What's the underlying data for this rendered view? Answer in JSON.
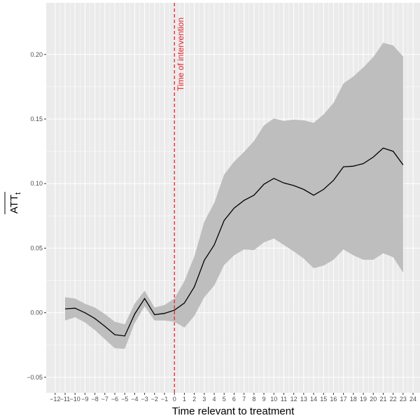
{
  "chart_data": {
    "type": "line",
    "xlabel": "Time relevant to treatment",
    "ylabel": "ATT",
    "ylabel_sub": "t",
    "xlim": [
      -12.9,
      24.7
    ],
    "ylim": [
      -0.062,
      0.24
    ],
    "x_ticks": [
      -12,
      -11,
      -10,
      -9,
      -8,
      -7,
      -6,
      -5,
      -4,
      -3,
      -2,
      -1,
      0,
      1,
      2,
      3,
      4,
      5,
      6,
      7,
      8,
      9,
      10,
      11,
      12,
      13,
      14,
      15,
      16,
      17,
      18,
      19,
      20,
      21,
      22,
      23,
      24
    ],
    "x_tick_labels": [
      "−12",
      "−11",
      "−10",
      "−9",
      "−8",
      "−7",
      "−6",
      "−5",
      "−4",
      "−3",
      "−2",
      "−1",
      "0",
      "1",
      "2",
      "3",
      "4",
      "5",
      "6",
      "7",
      "8",
      "9",
      "10",
      "11",
      "12",
      "13",
      "14",
      "15",
      "16",
      "17",
      "18",
      "19",
      "20",
      "21",
      "22",
      "23",
      "24"
    ],
    "y_ticks": [
      -0.05,
      0.0,
      0.05,
      0.1,
      0.15,
      0.2
    ],
    "y_tick_labels": [
      "−0.05",
      "0.00",
      "0.05",
      "0.10",
      "0.15",
      "0.20"
    ],
    "grid": true,
    "colors": {
      "panel": "#ebebeb",
      "grid": "#ffffff",
      "band": "#bebebe",
      "line": "#000000",
      "vline": "#e8242a"
    },
    "series": [
      {
        "x": [
          -11,
          -10,
          -9,
          -8,
          -7,
          -6,
          -5,
          -4,
          -3,
          -2,
          -1,
          0,
          1,
          2,
          3,
          4,
          5,
          6,
          7,
          8,
          9,
          10,
          11,
          12,
          13,
          14,
          15,
          16,
          17,
          18,
          19,
          20,
          21,
          22,
          23
        ],
        "values": [
          0.003,
          0.0035,
          0.0,
          -0.0045,
          -0.0105,
          -0.017,
          -0.018,
          -0.001,
          0.011,
          -0.0015,
          -0.0005,
          0.002,
          0.0075,
          0.02,
          0.0405,
          0.0525,
          0.0715,
          0.081,
          0.087,
          0.091,
          0.0995,
          0.104,
          0.1005,
          0.0985,
          0.0955,
          0.091,
          0.0955,
          0.1025,
          0.113,
          0.1135,
          0.1155,
          0.1205,
          0.1275,
          0.125,
          0.1145
        ],
        "lower": [
          -0.006,
          -0.0035,
          -0.0075,
          -0.0135,
          -0.0205,
          -0.0275,
          -0.028,
          -0.008,
          0.005,
          -0.006,
          -0.006,
          -0.007,
          -0.0115,
          -0.0025,
          0.012,
          0.021,
          0.037,
          0.0445,
          0.049,
          0.0485,
          0.0545,
          0.0575,
          0.0525,
          0.0475,
          0.042,
          0.0345,
          0.0365,
          0.041,
          0.049,
          0.0445,
          0.041,
          0.041,
          0.046,
          0.043,
          0.031
        ],
        "upper": [
          0.012,
          0.011,
          0.007,
          0.004,
          -0.001,
          -0.007,
          -0.009,
          0.007,
          0.017,
          0.004,
          0.006,
          0.011,
          0.0245,
          0.0435,
          0.0705,
          0.085,
          0.107,
          0.117,
          0.1245,
          0.133,
          0.145,
          0.1505,
          0.1485,
          0.1495,
          0.149,
          0.147,
          0.1535,
          0.1625,
          0.1775,
          0.183,
          0.19,
          0.198,
          0.209,
          0.207,
          0.1985
        ]
      }
    ],
    "annotations": [
      {
        "text": "Time of intervention",
        "x": 0
      }
    ]
  }
}
